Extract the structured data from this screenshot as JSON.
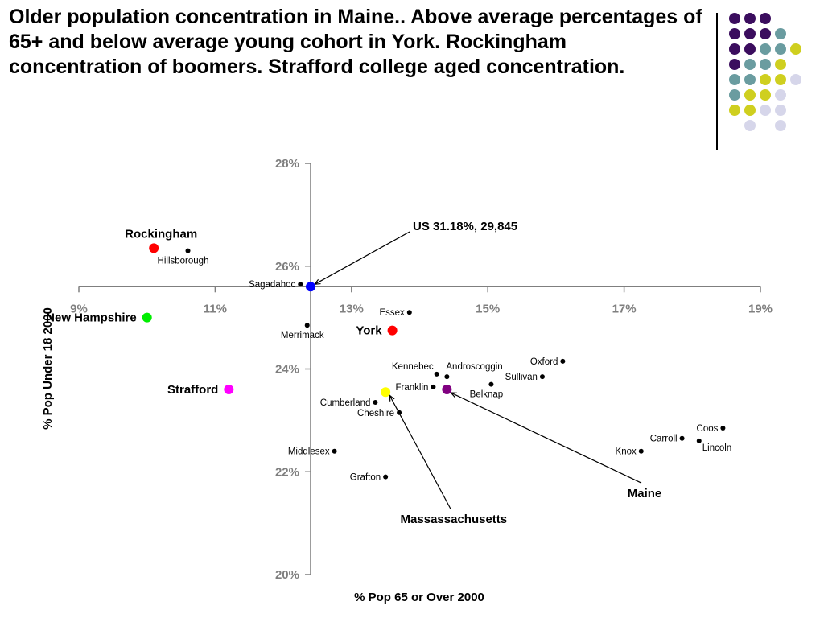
{
  "slide": {
    "title": "Older population concentration in Maine.. Above average percentages of 65+ and below average young cohort in York. Rockingham concentration of boomers. Strafford college aged concentration."
  },
  "decoration": {
    "grid": [
      [
        "purple",
        "purple",
        "purple",
        null,
        null
      ],
      [
        "purple",
        "purple",
        "purple",
        "teal",
        null
      ],
      [
        "purple",
        "purple",
        "teal",
        "teal",
        "yellow"
      ],
      [
        "purple",
        "teal",
        "teal",
        "yellow",
        null
      ],
      [
        "teal",
        "teal",
        "yellow",
        "yellow",
        "lavender"
      ],
      [
        "teal",
        "yellow",
        "yellow",
        "lavender",
        null
      ],
      [
        "yellow",
        "yellow",
        "lavender",
        "lavender",
        null
      ],
      [
        null,
        "lavender",
        null,
        "lavender",
        null
      ]
    ],
    "colors": {
      "purple": "#3b0d5e",
      "teal": "#6a9ca0",
      "yellow": "#cfcf1f",
      "lavender": "#d6d6ea"
    }
  },
  "chart_data": {
    "type": "scatter",
    "title": "",
    "xlabel": "% Pop 65 or Over 2000",
    "ylabel": "% Pop Under 18 2000",
    "xlim": [
      9,
      19
    ],
    "ylim": [
      20,
      28
    ],
    "crosshair": {
      "x": 12.4,
      "y": 25.6
    },
    "x_ticks": [
      9,
      11,
      13,
      15,
      17,
      19
    ],
    "x_tick_labels": [
      "9%",
      "11%",
      "13%",
      "15%",
      "17%",
      "19%"
    ],
    "y_ticks": [
      20,
      22,
      24,
      26,
      28
    ],
    "y_tick_labels": [
      "20%",
      "22%",
      "24%",
      "26%",
      "28%"
    ],
    "grid": false,
    "legend": "none",
    "colors": {
      "label": "#000000",
      "tick": "#7f7f7f",
      "axis": "#7f7f7f",
      "point": "#000000"
    },
    "highlights": [
      {
        "name": "Rockingham",
        "x": 10.1,
        "y": 26.35,
        "color": "#ff0000",
        "label_pos": "above"
      },
      {
        "name": "New Hampshire",
        "x": 10.0,
        "y": 25.0,
        "color": "#00ee00",
        "label_pos": "left"
      },
      {
        "name": "Strafford",
        "x": 11.2,
        "y": 23.6,
        "color": "#ff00ff",
        "label_pos": "left"
      },
      {
        "name": "York",
        "x": 13.6,
        "y": 24.75,
        "color": "#ff0000",
        "label_pos": "left"
      },
      {
        "name": "US 31.18%, 29,845",
        "x": 12.4,
        "y": 25.6,
        "color": "#0000ff",
        "label_pos": "callout",
        "label_at": {
          "x": 13.9,
          "y": 26.7
        }
      },
      {
        "name": "Massassachusetts",
        "x": 13.5,
        "y": 23.55,
        "color": "#ffff00",
        "label_pos": "callout",
        "label_at": {
          "x": 14.5,
          "y": 21.0
        }
      },
      {
        "name": "Maine",
        "x": 14.4,
        "y": 23.6,
        "color": "#800080",
        "label_pos": "callout",
        "label_at": {
          "x": 17.3,
          "y": 21.5
        }
      }
    ],
    "points": [
      {
        "name": "Hillsborough",
        "x": 10.6,
        "y": 26.3,
        "label_pos": "below"
      },
      {
        "name": "Sagadahoc",
        "x": 12.25,
        "y": 25.65,
        "label_pos": "left"
      },
      {
        "name": "Essex",
        "x": 13.85,
        "y": 25.1,
        "label_pos": "left"
      },
      {
        "name": "Merrimack",
        "x": 12.35,
        "y": 24.85,
        "label_pos": "below"
      },
      {
        "name": "Kennebec",
        "x": 14.25,
        "y": 23.9,
        "label_pos": "above-left"
      },
      {
        "name": "Androscoggin",
        "x": 14.4,
        "y": 23.85,
        "label_pos": "above-right"
      },
      {
        "name": "Oxford",
        "x": 16.1,
        "y": 24.15,
        "label_pos": "left"
      },
      {
        "name": "Sullivan",
        "x": 15.8,
        "y": 23.85,
        "label_pos": "left"
      },
      {
        "name": "Franklin",
        "x": 14.2,
        "y": 23.65,
        "label_pos": "left"
      },
      {
        "name": "Belknap",
        "x": 15.05,
        "y": 23.7,
        "label_pos": "below"
      },
      {
        "name": "Cumberland",
        "x": 13.35,
        "y": 23.35,
        "label_pos": "left"
      },
      {
        "name": "Cheshire",
        "x": 13.7,
        "y": 23.15,
        "label_pos": "left"
      },
      {
        "name": "Coos",
        "x": 18.45,
        "y": 22.85,
        "label_pos": "left"
      },
      {
        "name": "Carroll",
        "x": 17.85,
        "y": 22.65,
        "label_pos": "left"
      },
      {
        "name": "Lincoln",
        "x": 18.1,
        "y": 22.6,
        "label_pos": "below-right"
      },
      {
        "name": "Knox",
        "x": 17.25,
        "y": 22.4,
        "label_pos": "left"
      },
      {
        "name": "Middlesex",
        "x": 12.75,
        "y": 22.4,
        "label_pos": "left"
      },
      {
        "name": "Grafton",
        "x": 13.5,
        "y": 21.9,
        "label_pos": "left"
      }
    ]
  }
}
